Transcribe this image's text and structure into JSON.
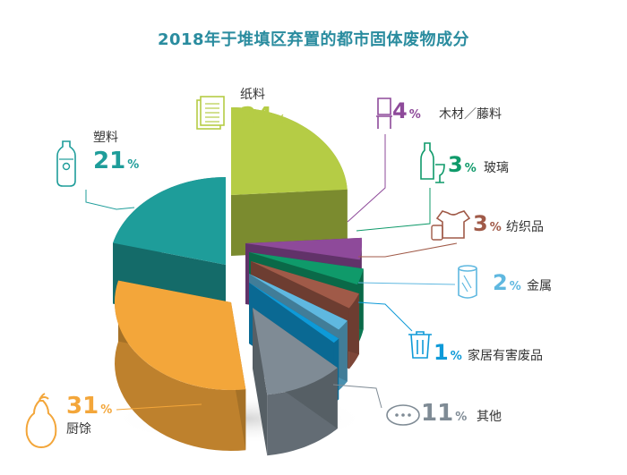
{
  "title": "2018年于堆填区弃置的都市固体废物成分",
  "chart_data": {
    "type": "pie",
    "title": "2018年于堆填区弃置的都市固体废物成分",
    "unit": "%",
    "categories": [
      "纸料",
      "木材／藤料",
      "玻璃",
      "纺织品",
      "金属",
      "家居有害废品",
      "其他",
      "厨馀",
      "塑料"
    ],
    "values": [
      24,
      4,
      3,
      3,
      2,
      1,
      11,
      31,
      21
    ],
    "colors": [
      "#b5cc45",
      "#8e4a9a",
      "#0f9a6a",
      "#a05a48",
      "#5fb8e0",
      "#0e9ad8",
      "#7f8b95",
      "#f3a63a",
      "#1e9d9a"
    ],
    "icons": [
      "paper-icon",
      "chair-icon",
      "bottle-glass-icon",
      "tshirt-icon",
      "can-icon",
      "trash-bin-icon",
      "chat-icon",
      "pear-icon",
      "plastic-bottle-icon"
    ]
  }
}
